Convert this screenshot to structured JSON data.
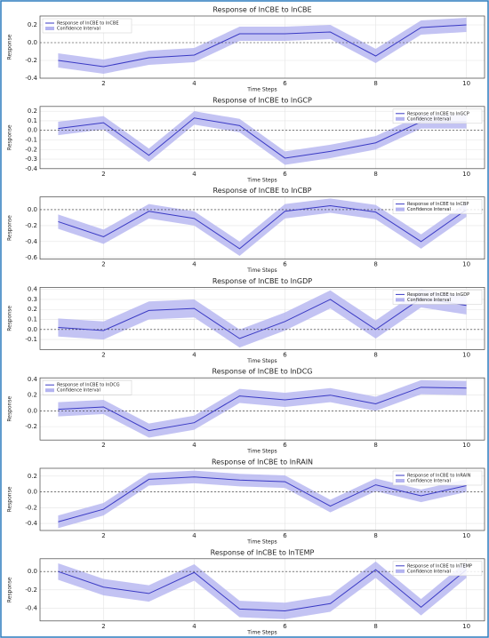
{
  "chart_data": [
    {
      "type": "line",
      "title": "Response of lnCBE to lnCBE",
      "x_label": "Time Steps",
      "y_label": "Response",
      "x": [
        1,
        2,
        3,
        4,
        5,
        6,
        7,
        8,
        9,
        10
      ],
      "xlim": [
        0.6,
        10.4
      ],
      "xticks": [
        2,
        4,
        6,
        8,
        10
      ],
      "ylim": [
        -0.4,
        0.3
      ],
      "yticks": [
        -0.4,
        -0.2,
        {
          "value": 0,
          "label": "0.0"
        },
        0.2
      ],
      "grid": true,
      "reference_line": 0,
      "legend": "upper left",
      "series": [
        {
          "name": "Response of lnCBE to lnCBE",
          "color": "#3a3ac4",
          "values": [
            -0.2,
            -0.27,
            -0.17,
            -0.14,
            0.1,
            0.1,
            0.12,
            -0.15,
            0.17,
            0.2
          ]
        }
      ],
      "band": {
        "name": "Confidence Interval",
        "color": "#b4b4f0",
        "lower": [
          -0.28,
          -0.35,
          -0.25,
          -0.22,
          0.02,
          0.02,
          0.04,
          -0.23,
          0.09,
          0.12
        ],
        "upper": [
          -0.12,
          -0.19,
          -0.09,
          -0.06,
          0.18,
          0.18,
          0.2,
          -0.07,
          0.25,
          0.28
        ]
      }
    },
    {
      "type": "line",
      "title": "Response of lnCBE to lnGCP",
      "x_label": "Time Steps",
      "y_label": "Response",
      "x": [
        1,
        2,
        3,
        4,
        5,
        6,
        7,
        8,
        9,
        10
      ],
      "xlim": [
        0.6,
        10.4
      ],
      "xticks": [
        2,
        4,
        6,
        8,
        10
      ],
      "ylim": [
        -0.4,
        0.25
      ],
      "yticks": [
        -0.4,
        -0.3,
        -0.2,
        -0.1,
        {
          "value": 0,
          "label": "0.0"
        },
        0.1,
        0.2
      ],
      "grid": true,
      "reference_line": 0,
      "legend": "upper right",
      "series": [
        {
          "name": "Response of lnCBE to lnGCP",
          "color": "#3a3ac4",
          "values": [
            0.02,
            0.08,
            -0.26,
            0.13,
            0.05,
            -0.29,
            -0.22,
            -0.13,
            0.09,
            0.09
          ]
        }
      ],
      "band": {
        "name": "Confidence Interval",
        "color": "#b4b4f0",
        "lower": [
          -0.05,
          0.01,
          -0.33,
          0.06,
          -0.02,
          -0.36,
          -0.29,
          -0.2,
          0.02,
          0.02
        ],
        "upper": [
          0.09,
          0.15,
          -0.19,
          0.2,
          0.12,
          -0.22,
          -0.15,
          -0.06,
          0.16,
          0.16
        ]
      }
    },
    {
      "type": "line",
      "title": "Response of lnCBE to lnCBP",
      "x_label": "Time Steps",
      "y_label": "Response",
      "x": [
        1,
        2,
        3,
        4,
        5,
        6,
        7,
        8,
        9,
        10
      ],
      "xlim": [
        0.6,
        10.4
      ],
      "xticks": [
        2,
        4,
        6,
        8,
        10
      ],
      "ylim": [
        -0.62,
        0.16
      ],
      "yticks": [
        -0.6,
        -0.4,
        -0.2,
        {
          "value": 0,
          "label": "0.0"
        }
      ],
      "grid": true,
      "reference_line": 0,
      "legend": "upper right",
      "series": [
        {
          "name": "Response of lnCBE to lnCBP",
          "color": "#3a3ac4",
          "values": [
            -0.15,
            -0.34,
            -0.02,
            -0.11,
            -0.49,
            -0.02,
            0.05,
            -0.03,
            -0.4,
            0.0
          ]
        }
      ],
      "band": {
        "name": "Confidence Interval",
        "color": "#b4b4f0",
        "lower": [
          -0.24,
          -0.43,
          -0.11,
          -0.2,
          -0.58,
          -0.11,
          -0.04,
          -0.12,
          -0.49,
          -0.09
        ],
        "upper": [
          -0.06,
          -0.25,
          0.07,
          -0.02,
          -0.4,
          0.07,
          0.14,
          0.06,
          -0.31,
          0.09
        ]
      }
    },
    {
      "type": "line",
      "title": "Response of lnCBE to lnGDP",
      "x_label": "Time Steps",
      "y_label": "Response",
      "x": [
        1,
        2,
        3,
        4,
        5,
        6,
        7,
        8,
        9,
        10
      ],
      "xlim": [
        0.6,
        10.4
      ],
      "xticks": [
        2,
        4,
        6,
        8,
        10
      ],
      "ylim": [
        -0.2,
        0.42
      ],
      "yticks": [
        -0.1,
        {
          "value": 0,
          "label": "0.0"
        },
        0.1,
        0.2,
        0.3,
        0.4
      ],
      "grid": true,
      "reference_line": 0,
      "legend": "upper right",
      "series": [
        {
          "name": "Response of lnCBE to lnGDP",
          "color": "#3a3ac4",
          "values": [
            0.02,
            -0.01,
            0.19,
            0.21,
            -0.09,
            0.08,
            0.3,
            0.0,
            0.31,
            0.24
          ]
        }
      ],
      "band": {
        "name": "Confidence Interval",
        "color": "#b4b4f0",
        "lower": [
          -0.07,
          -0.1,
          0.1,
          0.12,
          -0.18,
          -0.01,
          0.21,
          -0.09,
          0.22,
          0.15
        ],
        "upper": [
          0.11,
          0.08,
          0.28,
          0.3,
          0,
          0.17,
          0.39,
          0.09,
          0.4,
          0.33
        ]
      }
    },
    {
      "type": "line",
      "title": "Response of lnCBE to lnDCG",
      "x_label": "Time Steps",
      "y_label": "Response",
      "x": [
        1,
        2,
        3,
        4,
        5,
        6,
        7,
        8,
        9,
        10
      ],
      "xlim": [
        0.6,
        10.4
      ],
      "xticks": [
        2,
        4,
        6,
        8,
        10
      ],
      "ylim": [
        -0.37,
        0.42
      ],
      "yticks": [
        -0.2,
        {
          "value": 0,
          "label": "0.0"
        },
        0.2,
        0.4
      ],
      "grid": true,
      "reference_line": 0,
      "legend": "upper left",
      "series": [
        {
          "name": "Response of lnCBE to lnDCG",
          "color": "#3a3ac4",
          "values": [
            0.02,
            0.05,
            -0.25,
            -0.15,
            0.19,
            0.14,
            0.2,
            0.09,
            0.3,
            0.29
          ]
        }
      ],
      "band": {
        "name": "Confidence Interval",
        "color": "#b4b4f0",
        "lower": [
          -0.07,
          -0.04,
          -0.34,
          -0.24,
          0.1,
          0.05,
          0.11,
          0,
          0.21,
          0.2
        ],
        "upper": [
          0.11,
          0.14,
          -0.16,
          -0.06,
          0.28,
          0.23,
          0.29,
          0.18,
          0.39,
          0.38
        ]
      }
    },
    {
      "type": "line",
      "title": "Response of lnCBE to lnRAIN",
      "x_label": "Time Steps",
      "y_label": "Response",
      "x": [
        1,
        2,
        3,
        4,
        5,
        6,
        7,
        8,
        9,
        10
      ],
      "xlim": [
        0.6,
        10.4
      ],
      "xticks": [
        2,
        4,
        6,
        8,
        10
      ],
      "ylim": [
        -0.49,
        0.3
      ],
      "yticks": [
        -0.4,
        -0.2,
        {
          "value": 0,
          "label": "0.0"
        },
        0.2
      ],
      "grid": true,
      "reference_line": 0,
      "legend": "upper right",
      "series": [
        {
          "name": "Response of lnCBE to lnRAIN",
          "color": "#3a3ac4",
          "values": [
            -0.38,
            -0.22,
            0.16,
            0.19,
            0.15,
            0.13,
            -0.18,
            0.09,
            -0.05,
            0.08
          ]
        }
      ],
      "band": {
        "name": "Confidence Interval",
        "color": "#b4b4f0",
        "lower": [
          -0.46,
          -0.3,
          0.08,
          0.11,
          0.07,
          0.05,
          -0.26,
          0.01,
          -0.13,
          0
        ],
        "upper": [
          -0.3,
          -0.14,
          0.24,
          0.27,
          0.23,
          0.21,
          -0.1,
          0.17,
          0.03,
          0.16
        ]
      }
    },
    {
      "type": "line",
      "title": "Response of lnCBE to lnTEMP",
      "x_label": "Time Steps",
      "y_label": "Response",
      "x": [
        1,
        2,
        3,
        4,
        5,
        6,
        7,
        8,
        9,
        10
      ],
      "xlim": [
        0.6,
        10.4
      ],
      "xticks": [
        2,
        4,
        6,
        8,
        10
      ],
      "ylim": [
        -0.54,
        0.14
      ],
      "yticks": [
        -0.4,
        -0.2,
        {
          "value": 0,
          "label": "0.0"
        }
      ],
      "grid": true,
      "reference_line": 0,
      "legend": "upper right",
      "series": [
        {
          "name": "Response of lnCBE to lnTEMP",
          "color": "#3a3ac4",
          "values": [
            0,
            -0.17,
            -0.24,
            -0.01,
            -0.41,
            -0.43,
            -0.35,
            0.02,
            -0.39,
            0.02
          ]
        }
      ],
      "band": {
        "name": "Confidence Interval",
        "color": "#b4b4f0",
        "lower": [
          -0.09,
          -0.26,
          -0.33,
          -0.1,
          -0.5,
          -0.52,
          -0.44,
          -0.07,
          -0.48,
          -0.07
        ],
        "upper": [
          0.09,
          -0.08,
          -0.15,
          0.08,
          -0.32,
          -0.34,
          -0.26,
          0.11,
          -0.3,
          0.11
        ]
      }
    }
  ]
}
